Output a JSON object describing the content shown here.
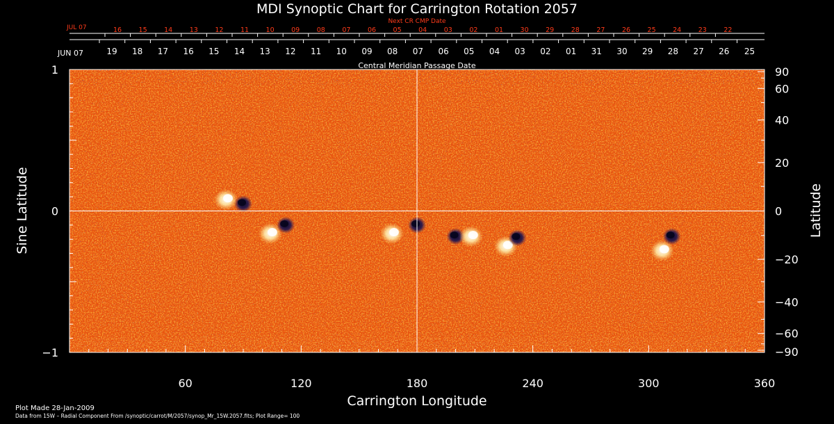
{
  "chart_data": {
    "type": "heatmap",
    "title": "MDI Synoptic Chart for Carrington Rotation 2057",
    "next_cr_label": "Next CR CMP Date",
    "cmp_label": "Central Meridian Passage Date",
    "xlabel": "Carrington Longitude",
    "ylabel_left": "Sine Latitude",
    "ylabel_right": "Latitude",
    "xlim": [
      0,
      360
    ],
    "ylim": [
      -1,
      1
    ],
    "x_ticks": [
      "60",
      "120",
      "180",
      "240",
      "300",
      "360"
    ],
    "x_tick_values": [
      60,
      120,
      180,
      240,
      300,
      360
    ],
    "left_ticks": [
      "1",
      "0",
      "−1"
    ],
    "left_tick_values": [
      1,
      0,
      -1
    ],
    "right_ticks": [
      "90",
      "60",
      "40",
      "20",
      "0",
      "−20",
      "−40",
      "−60",
      "−90"
    ],
    "right_tick_values": [
      90,
      60,
      40,
      20,
      0,
      -20,
      -40,
      -60,
      -90
    ],
    "cmp_start_label": "JUN 07",
    "cmp_dates": [
      "19",
      "18",
      "17",
      "16",
      "15",
      "14",
      "13",
      "12",
      "11",
      "10",
      "09",
      "08",
      "07",
      "06",
      "05",
      "04",
      "03",
      "02",
      "01",
      "31",
      "30",
      "29",
      "28",
      "27",
      "26",
      "25"
    ],
    "next_start_label": "JUL 07",
    "next_dates": [
      "16",
      "15",
      "14",
      "13",
      "12",
      "11",
      "10",
      "09",
      "08",
      "07",
      "06",
      "05",
      "04",
      "03",
      "02",
      "01",
      "30",
      "29",
      "28",
      "27",
      "26",
      "25",
      "24",
      "23",
      "22"
    ],
    "footer_line1": "Plot Made 28-Jan-2009",
    "footer_line2": "Data from 15W – Radial Component From /synoptic/carrot/M/2057/synop_Mr_15W.2057.fits; Plot Range= 100",
    "colors": {
      "background": "#000000",
      "field_base": "#e8520e",
      "positive": "#fff3c0",
      "negative": "#1c1450",
      "crosshair": "#ffffff",
      "next_dates": "#ff3b1a"
    },
    "active_regions": [
      {
        "lon": 81,
        "lat_sin": 0.08,
        "polarity": "positive"
      },
      {
        "lon": 90,
        "lat_sin": 0.05,
        "polarity": "negative"
      },
      {
        "lon": 104,
        "lat_sin": -0.16,
        "polarity": "positive"
      },
      {
        "lon": 112,
        "lat_sin": -0.1,
        "polarity": "negative"
      },
      {
        "lon": 167,
        "lat_sin": -0.16,
        "polarity": "positive"
      },
      {
        "lon": 180,
        "lat_sin": -0.1,
        "polarity": "negative"
      },
      {
        "lon": 200,
        "lat_sin": -0.18,
        "polarity": "negative"
      },
      {
        "lon": 208,
        "lat_sin": -0.18,
        "polarity": "positive"
      },
      {
        "lon": 226,
        "lat_sin": -0.25,
        "polarity": "positive"
      },
      {
        "lon": 232,
        "lat_sin": -0.19,
        "polarity": "negative"
      },
      {
        "lon": 307,
        "lat_sin": -0.28,
        "polarity": "positive"
      },
      {
        "lon": 312,
        "lat_sin": -0.18,
        "polarity": "negative"
      }
    ]
  }
}
